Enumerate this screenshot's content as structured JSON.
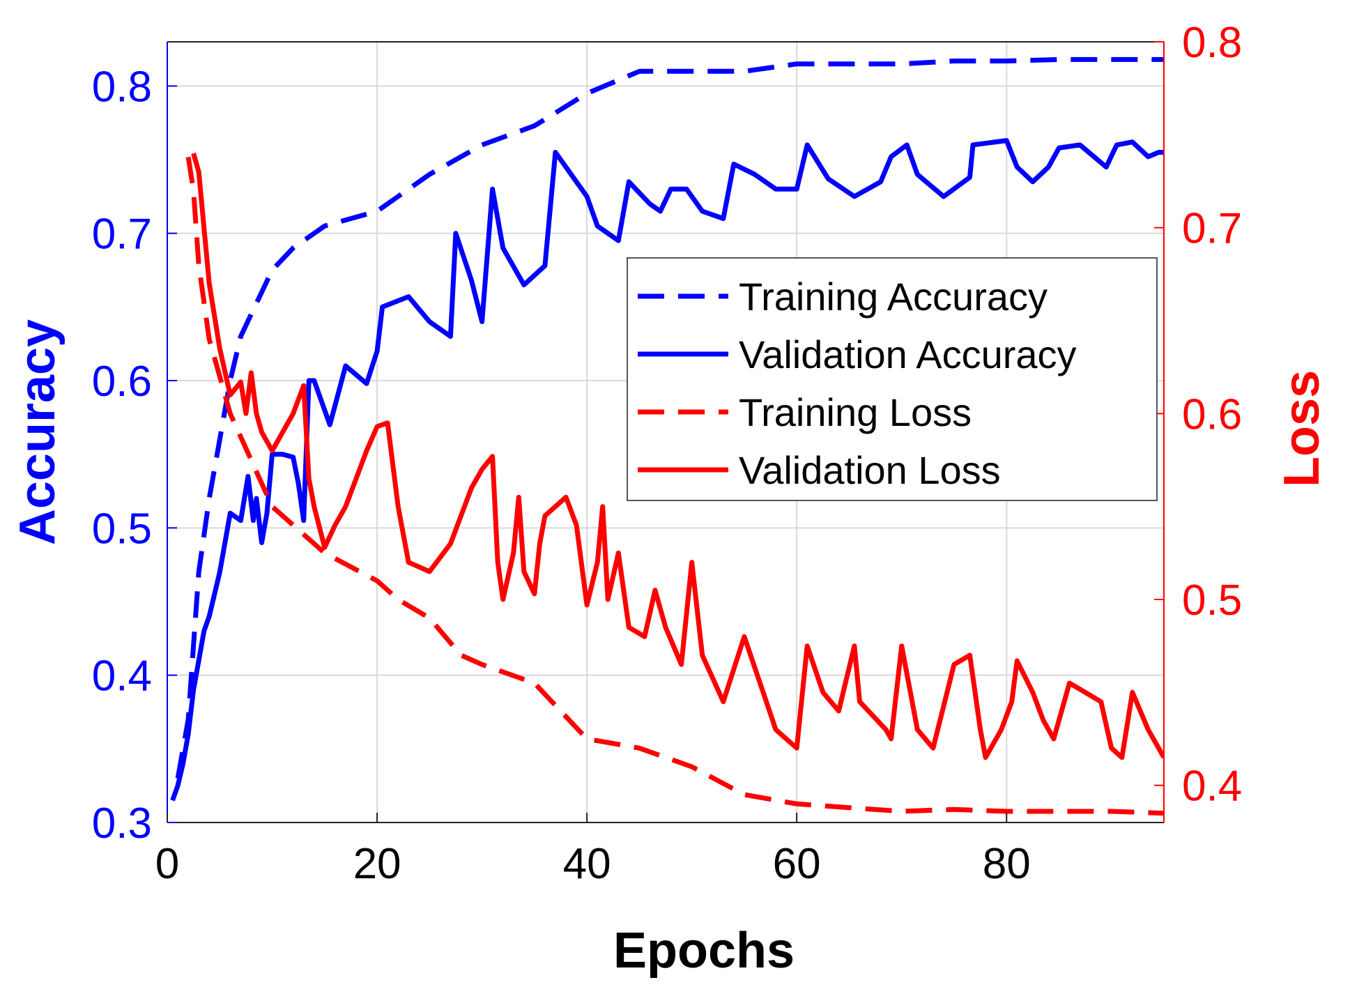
{
  "colors": {
    "accuracy": "#0000ff",
    "loss": "#ff0000",
    "grid": "#d9d9d9",
    "text": "#000000"
  },
  "chart_data": {
    "type": "line",
    "title": "",
    "xlabel": "Epochs",
    "ylabel_left": "Accuracy",
    "ylabel_right": "Loss",
    "xlim": [
      0,
      95
    ],
    "ylim_left": [
      0.3,
      0.83
    ],
    "ylim_right": [
      0.38,
      0.8
    ],
    "x_ticks": [
      0,
      20,
      40,
      60,
      80
    ],
    "x_tick_labels": [
      "0",
      "20",
      "40",
      "60",
      "80"
    ],
    "y_left_ticks": [
      0.3,
      0.4,
      0.5,
      0.6,
      0.7,
      0.8
    ],
    "y_left_tick_labels": [
      "0.3",
      "0.4",
      "0.5",
      "0.6",
      "0.7",
      "0.8"
    ],
    "y_right_ticks": [
      0.4,
      0.5,
      0.6,
      0.7,
      0.8
    ],
    "y_right_tick_labels": [
      "0.4",
      "0.5",
      "0.6",
      "0.7",
      "0.8"
    ],
    "grid": true,
    "legend_position": "center-right",
    "series": [
      {
        "name": "Training Accuracy",
        "axis": "left",
        "style": "dashed",
        "color": "#0000ff",
        "x": [
          1,
          2,
          2.5,
          3,
          4,
          5,
          6,
          7,
          8,
          9,
          10,
          12,
          15,
          20,
          25,
          30,
          35,
          40,
          45,
          50,
          55,
          60,
          65,
          70,
          75,
          80,
          85,
          90,
          95
        ],
        "y": [
          0.33,
          0.37,
          0.42,
          0.47,
          0.52,
          0.56,
          0.6,
          0.63,
          0.645,
          0.66,
          0.675,
          0.69,
          0.705,
          0.715,
          0.74,
          0.76,
          0.773,
          0.795,
          0.81,
          0.81,
          0.81,
          0.815,
          0.815,
          0.815,
          0.817,
          0.817,
          0.818,
          0.818,
          0.818
        ]
      },
      {
        "name": "Validation Accuracy",
        "axis": "left",
        "style": "solid",
        "color": "#0000ff",
        "x": [
          0.5,
          1,
          1.5,
          2,
          2.5,
          3,
          3.5,
          4,
          5,
          5.5,
          6,
          7,
          7.7,
          8.2,
          8.5,
          9,
          9.5,
          10,
          11,
          12,
          12.5,
          13,
          13.5,
          14,
          15.5,
          17,
          19,
          20,
          20.5,
          23,
          25,
          27,
          27.5,
          29,
          30,
          31,
          32,
          34,
          36,
          37,
          40,
          41,
          43,
          44,
          46,
          47,
          48,
          49.5,
          51,
          53,
          54,
          56,
          58,
          60,
          61,
          63,
          65.5,
          68,
          69,
          70.5,
          71.5,
          74,
          76.5,
          76.8,
          80,
          81,
          82.5,
          84,
          85,
          87,
          89.5,
          90.5,
          92,
          93.5,
          94.5,
          95
        ],
        "y": [
          0.315,
          0.325,
          0.34,
          0.36,
          0.39,
          0.41,
          0.43,
          0.44,
          0.47,
          0.49,
          0.51,
          0.505,
          0.535,
          0.505,
          0.52,
          0.49,
          0.51,
          0.55,
          0.55,
          0.548,
          0.53,
          0.505,
          0.6,
          0.6,
          0.57,
          0.61,
          0.598,
          0.62,
          0.65,
          0.657,
          0.64,
          0.63,
          0.7,
          0.668,
          0.64,
          0.73,
          0.69,
          0.665,
          0.678,
          0.755,
          0.725,
          0.705,
          0.695,
          0.735,
          0.72,
          0.715,
          0.73,
          0.73,
          0.715,
          0.71,
          0.747,
          0.74,
          0.73,
          0.73,
          0.76,
          0.737,
          0.725,
          0.735,
          0.752,
          0.76,
          0.74,
          0.725,
          0.738,
          0.76,
          0.763,
          0.745,
          0.735,
          0.745,
          0.758,
          0.76,
          0.745,
          0.76,
          0.762,
          0.752,
          0.755,
          0.755
        ]
      },
      {
        "name": "Training Loss",
        "axis": "right",
        "style": "dashed",
        "color": "#ff0000",
        "x": [
          2,
          2.5,
          3,
          4,
          5,
          6,
          8,
          10,
          13,
          15,
          20,
          22,
          25,
          28,
          30,
          35,
          40,
          45,
          50,
          55,
          60,
          65,
          70,
          75,
          80,
          85,
          90,
          95
        ],
        "y": [
          0.738,
          0.72,
          0.68,
          0.64,
          0.62,
          0.6,
          0.575,
          0.55,
          0.535,
          0.525,
          0.51,
          0.5,
          0.49,
          0.47,
          0.465,
          0.455,
          0.425,
          0.42,
          0.41,
          0.395,
          0.39,
          0.388,
          0.386,
          0.387,
          0.386,
          0.386,
          0.386,
          0.385
        ]
      },
      {
        "name": "Validation Loss",
        "axis": "right",
        "style": "solid",
        "color": "#ff0000",
        "x": [
          2.5,
          3,
          4,
          5,
          6,
          7,
          7.5,
          8,
          8.5,
          9,
          10,
          12,
          13,
          13.5,
          14,
          15,
          16,
          17,
          19,
          20,
          21,
          22,
          23,
          25,
          27,
          29,
          30,
          31,
          31.5,
          32,
          33,
          33.5,
          34,
          35,
          35.5,
          36,
          37,
          38,
          39,
          40,
          41,
          41.5,
          42,
          43,
          44,
          45.5,
          46.5,
          47.5,
          49,
          50,
          51,
          53,
          55,
          56.5,
          58,
          60,
          61,
          62.5,
          64,
          65.5,
          66,
          68.5,
          69,
          70,
          71.5,
          73,
          75,
          76.5,
          77.5,
          78,
          79.5,
          80.5,
          81,
          82.5,
          83.5,
          84.5,
          86,
          87.5,
          89,
          90,
          91,
          92,
          93.5,
          95
        ],
        "y": [
          0.74,
          0.73,
          0.67,
          0.635,
          0.61,
          0.617,
          0.6,
          0.622,
          0.6,
          0.59,
          0.58,
          0.6,
          0.615,
          0.565,
          0.55,
          0.528,
          0.54,
          0.55,
          0.58,
          0.593,
          0.595,
          0.55,
          0.52,
          0.515,
          0.53,
          0.56,
          0.57,
          0.577,
          0.52,
          0.5,
          0.525,
          0.555,
          0.515,
          0.503,
          0.53,
          0.545,
          0.55,
          0.555,
          0.54,
          0.497,
          0.52,
          0.55,
          0.5,
          0.525,
          0.485,
          0.48,
          0.505,
          0.485,
          0.465,
          0.52,
          0.47,
          0.445,
          0.48,
          0.455,
          0.43,
          0.42,
          0.475,
          0.45,
          0.44,
          0.475,
          0.445,
          0.43,
          0.425,
          0.475,
          0.43,
          0.42,
          0.465,
          0.47,
          0.43,
          0.415,
          0.43,
          0.445,
          0.467,
          0.45,
          0.435,
          0.425,
          0.455,
          0.45,
          0.445,
          0.42,
          0.415,
          0.45,
          0.43,
          0.415
        ]
      }
    ]
  }
}
